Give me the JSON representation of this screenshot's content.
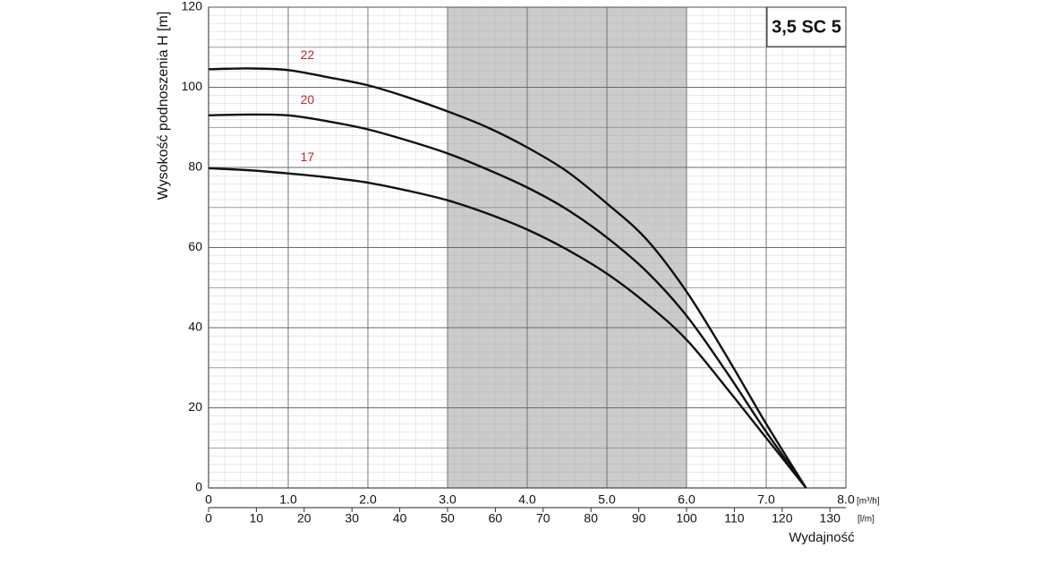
{
  "chart_data": {
    "type": "line",
    "badge": "3,5 SC 5",
    "ylabel": "Wysokość podnoszenia H [m]",
    "xlabel": "Wydajność",
    "x_unit": "[m³/h]",
    "x2_unit": "[l/m]",
    "x": [
      0,
      0.5,
      1,
      1.5,
      2,
      2.5,
      3,
      3.5,
      4,
      4.5,
      5,
      5.5,
      6,
      6.5,
      7,
      7.5
    ],
    "series": [
      {
        "name": "22",
        "color": "#111111",
        "values": [
          104.5,
          104.7,
          104.3,
          102.5,
          100.5,
          97.5,
          94,
          90,
          85,
          79,
          71,
          62,
          49,
          33,
          16,
          0
        ]
      },
      {
        "name": "20",
        "color": "#111111",
        "values": [
          93,
          93.2,
          93,
          91.5,
          89.5,
          86.7,
          83.5,
          79.5,
          75,
          69.5,
          62.5,
          54,
          43,
          29,
          14,
          0
        ]
      },
      {
        "name": "17",
        "color": "#111111",
        "values": [
          79.8,
          79.3,
          78.5,
          77.5,
          76.2,
          74.2,
          71.8,
          68.5,
          64.5,
          59.5,
          53.5,
          46,
          37,
          25,
          12.5,
          0
        ]
      }
    ],
    "label_color": "#c0272d",
    "xlim": [
      0,
      8
    ],
    "xticks": [
      0,
      {
        "value": 1,
        "label": "1.0"
      },
      {
        "value": 2,
        "label": "2.0"
      },
      {
        "value": 3,
        "label": "3.0"
      },
      {
        "value": 4,
        "label": "4.0"
      },
      {
        "value": 5,
        "label": "5.0"
      },
      {
        "value": 6,
        "label": "6.0"
      },
      {
        "value": 7,
        "label": "7.0"
      },
      {
        "value": 8,
        "label": "8.0"
      }
    ],
    "x2lim": [
      0,
      133.33
    ],
    "x2ticks": [
      0,
      10,
      20,
      30,
      40,
      50,
      60,
      70,
      80,
      90,
      100,
      110,
      120,
      130
    ],
    "ylim": [
      0,
      120
    ],
    "yticks": [
      0,
      20,
      40,
      60,
      80,
      100,
      120
    ],
    "shaded_range": [
      3,
      6
    ],
    "grid": true
  }
}
